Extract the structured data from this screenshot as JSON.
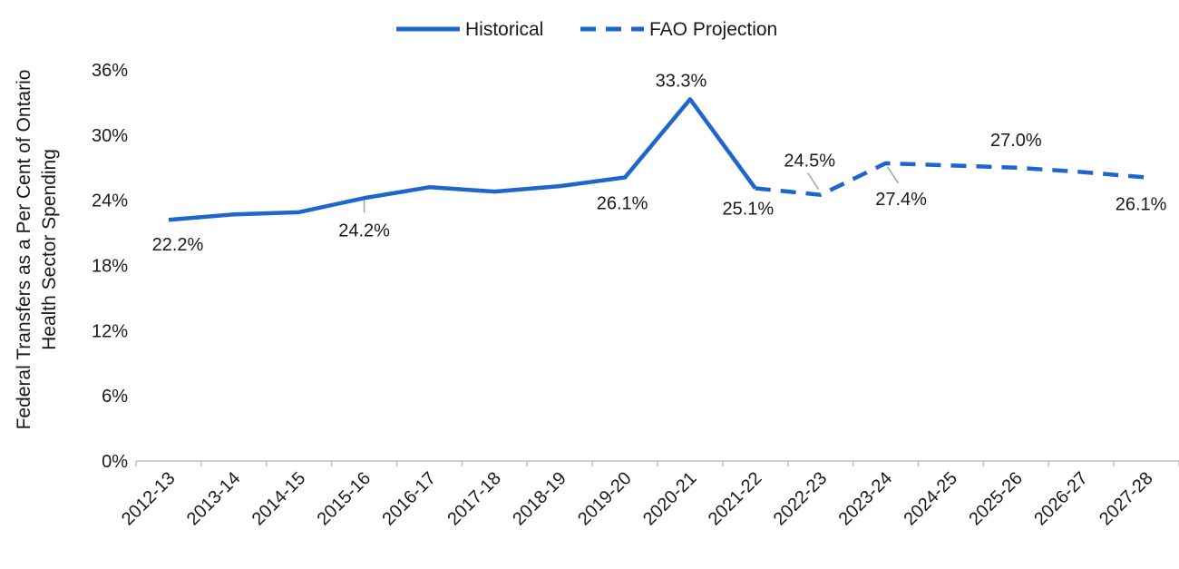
{
  "chart_data": {
    "type": "line",
    "categories": [
      "2012-13",
      "2013-14",
      "2014-15",
      "2015-16",
      "2016-17",
      "2017-18",
      "2018-19",
      "2019-20",
      "2020-21",
      "2021-22",
      "2022-23",
      "2023-24",
      "2024-25",
      "2025-26",
      "2026-27",
      "2027-28"
    ],
    "series": [
      {
        "name": "Historical",
        "color": "#1f66cc",
        "dash": "solid",
        "values": [
          22.2,
          22.7,
          22.9,
          24.2,
          25.2,
          24.8,
          25.3,
          26.1,
          33.3,
          25.1,
          null,
          null,
          null,
          null,
          null,
          null
        ]
      },
      {
        "name": "FAO Projection",
        "color": "#1f66cc",
        "dash": "dashed",
        "values": [
          null,
          null,
          null,
          null,
          null,
          null,
          null,
          null,
          null,
          25.1,
          24.5,
          27.4,
          27.2,
          27.0,
          26.6,
          26.1
        ]
      }
    ],
    "data_labels": [
      {
        "index": 0,
        "text": "22.2%"
      },
      {
        "index": 3,
        "text": "24.2%"
      },
      {
        "index": 7,
        "text": "26.1%"
      },
      {
        "index": 8,
        "text": "33.3%"
      },
      {
        "index": 9,
        "text": "25.1%"
      },
      {
        "index": 10,
        "text": "24.5%"
      },
      {
        "index": 11,
        "text": "27.4%"
      },
      {
        "index": 13,
        "text": "27.0%"
      },
      {
        "index": 15,
        "text": "26.1%"
      }
    ],
    "ylabel_lines": [
      "Federal Transfers as a Per Cent of Ontario",
      "Health Sector Spending"
    ],
    "xlabel": "",
    "title": "",
    "ylim": [
      0,
      36
    ],
    "yticks": [
      0,
      6,
      12,
      18,
      24,
      30,
      36
    ],
    "ytick_labels": [
      "0%",
      "6%",
      "12%",
      "18%",
      "24%",
      "30%",
      "36%"
    ],
    "legend_position": "top-center",
    "grid": false
  }
}
